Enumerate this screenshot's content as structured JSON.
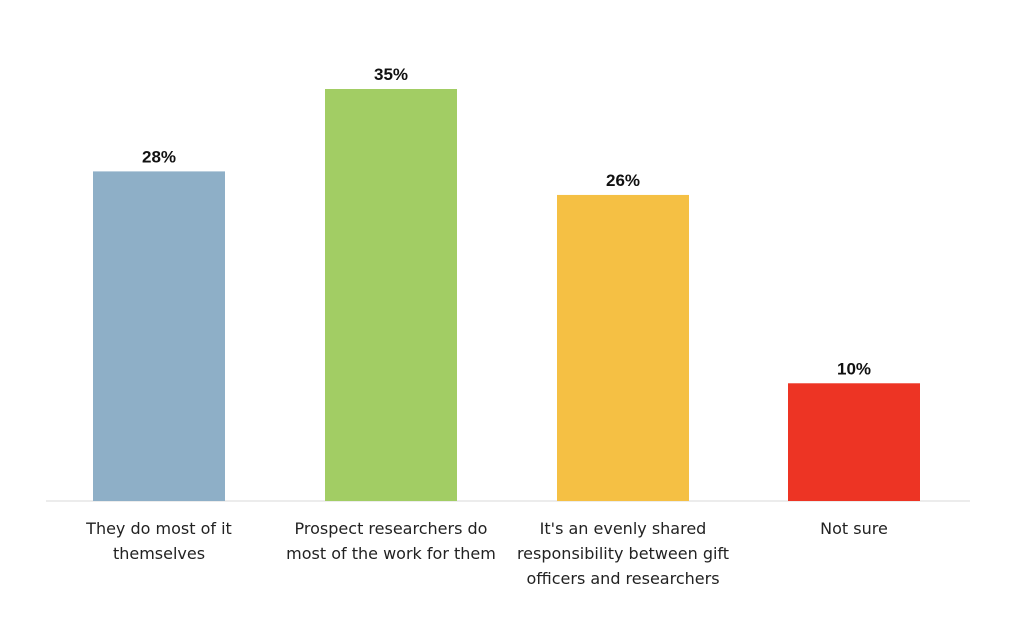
{
  "chart_data": {
    "type": "bar",
    "categories": [
      [
        "They do most of it",
        "themselves"
      ],
      [
        "Prospect researchers do",
        "most of the work for them"
      ],
      [
        "It's an evenly shared",
        "responsibility between gift",
        "officers and researchers"
      ],
      [
        "Not sure"
      ]
    ],
    "values": [
      28,
      35,
      26,
      10
    ],
    "value_labels": [
      "28%",
      "35%",
      "26%",
      "10%"
    ],
    "colors": [
      "#8eafc7",
      "#a2cd64",
      "#f5c044",
      "#ed3424"
    ],
    "ylim": [
      0,
      35
    ],
    "grid": false,
    "legend": "none"
  }
}
